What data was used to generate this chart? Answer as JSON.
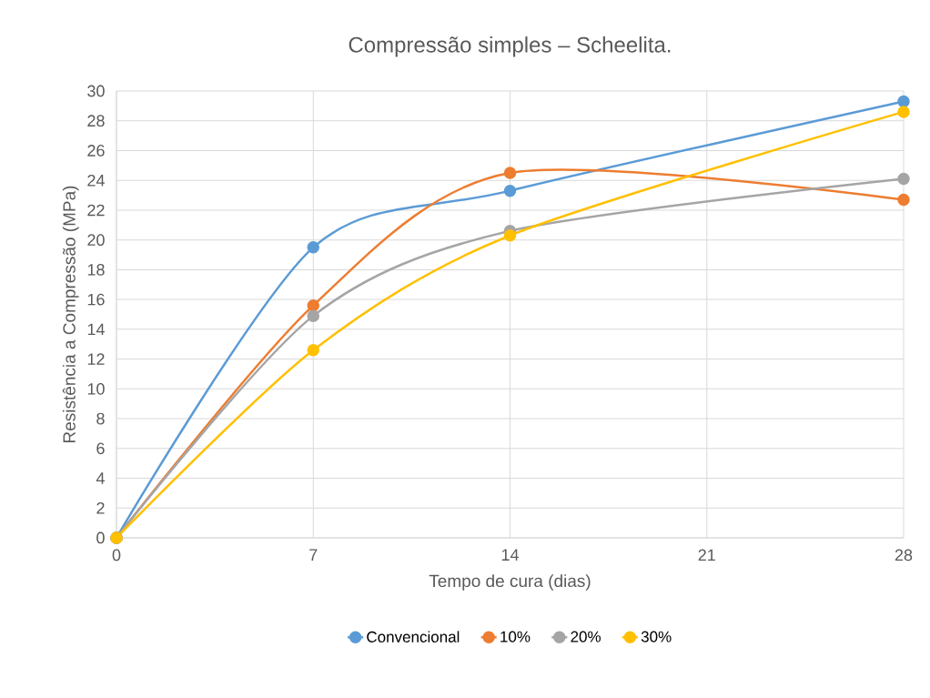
{
  "chart_data": {
    "type": "line",
    "title": "Compressão simples – Scheelita.",
    "xlabel": "Tempo de cura (dias)",
    "ylabel": "Resistência a Compressão (MPa)",
    "x": [
      0,
      7,
      14,
      28
    ],
    "xlim": [
      0,
      28
    ],
    "xticks": [
      0,
      7,
      14,
      21,
      28
    ],
    "ylim": [
      0,
      30
    ],
    "yticks": [
      0,
      2,
      4,
      6,
      8,
      10,
      12,
      14,
      16,
      18,
      20,
      22,
      24,
      26,
      28,
      30
    ],
    "grid": true,
    "legend": "bottom",
    "marker": "circle",
    "line_style": "solid",
    "series": [
      {
        "name": "Convencional",
        "color": "#5b9bd5",
        "values": [
          0,
          19.5,
          23.3,
          29.3
        ]
      },
      {
        "name": "10%",
        "color": "#ed7d31",
        "values": [
          0,
          15.6,
          24.5,
          22.7
        ]
      },
      {
        "name": "20%",
        "color": "#a5a5a5",
        "values": [
          0,
          14.9,
          20.6,
          24.1
        ]
      },
      {
        "name": "30%",
        "color": "#ffc000",
        "values": [
          0,
          12.6,
          20.3,
          28.6
        ]
      }
    ]
  }
}
